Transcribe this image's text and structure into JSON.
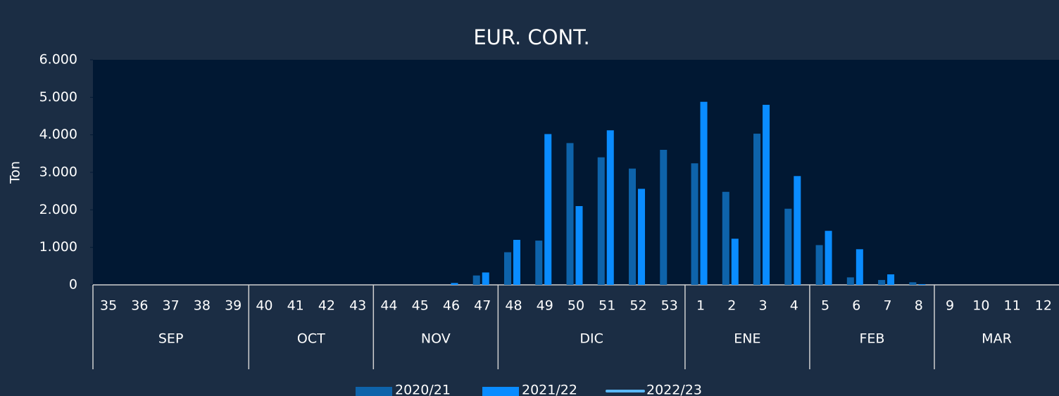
{
  "chart_data": {
    "type": "bar",
    "title": "EUR. CONT.",
    "y_label": "Ton",
    "categories": [
      "35",
      "36",
      "37",
      "38",
      "39",
      "40",
      "41",
      "42",
      "43",
      "44",
      "45",
      "46",
      "47",
      "48",
      "49",
      "50",
      "51",
      "52",
      "53",
      "1",
      "2",
      "3",
      "4",
      "5",
      "6",
      "7",
      "8",
      "9",
      "10",
      "11",
      "12"
    ],
    "groups": [
      {
        "label": "SEP",
        "span": 5
      },
      {
        "label": "OCT",
        "span": 4
      },
      {
        "label": "NOV",
        "span": 4
      },
      {
        "label": "DIC",
        "span": 6
      },
      {
        "label": "ENE",
        "span": 4
      },
      {
        "label": "FEB",
        "span": 4
      },
      {
        "label": "MAR",
        "span": 4
      }
    ],
    "series": [
      {
        "name": "2020/21",
        "type": "bar",
        "color": "#0e63aa",
        "values": [
          0,
          0,
          0,
          0,
          0,
          0,
          0,
          0,
          0,
          0,
          0,
          0,
          250,
          870,
          1180,
          3780,
          3400,
          3100,
          3600,
          3240,
          2480,
          4030,
          2030,
          1060,
          200,
          130,
          70,
          0,
          0,
          0,
          0
        ]
      },
      {
        "name": "2021/22",
        "type": "bar",
        "color": "#0a8cff",
        "values": [
          0,
          0,
          0,
          0,
          0,
          0,
          0,
          0,
          0,
          0,
          0,
          50,
          330,
          1200,
          4020,
          2100,
          4120,
          2560,
          0,
          4880,
          1230,
          4800,
          2900,
          1440,
          950,
          280,
          20,
          0,
          0,
          0,
          0
        ]
      },
      {
        "name": "2022/23",
        "type": "line",
        "color": "#5ab8f7",
        "values": [
          null,
          null,
          null,
          null,
          null,
          null,
          null,
          null,
          null,
          null,
          null,
          null,
          null,
          null,
          null,
          null,
          null,
          null,
          null,
          null,
          null,
          null,
          null,
          null,
          null,
          null,
          null,
          null,
          null,
          null,
          null
        ]
      }
    ],
    "ylim": [
      0,
      6000
    ],
    "yticks": [
      0,
      {
        "value": 1000,
        "label": "1.000"
      },
      {
        "value": 2000,
        "label": "2.000"
      },
      {
        "value": 3000,
        "label": "3.000"
      },
      {
        "value": 4000,
        "label": "4.000"
      },
      {
        "value": 5000,
        "label": "5.000"
      },
      {
        "value": 6000,
        "label": "6.000"
      }
    ],
    "legend": "bottom"
  }
}
